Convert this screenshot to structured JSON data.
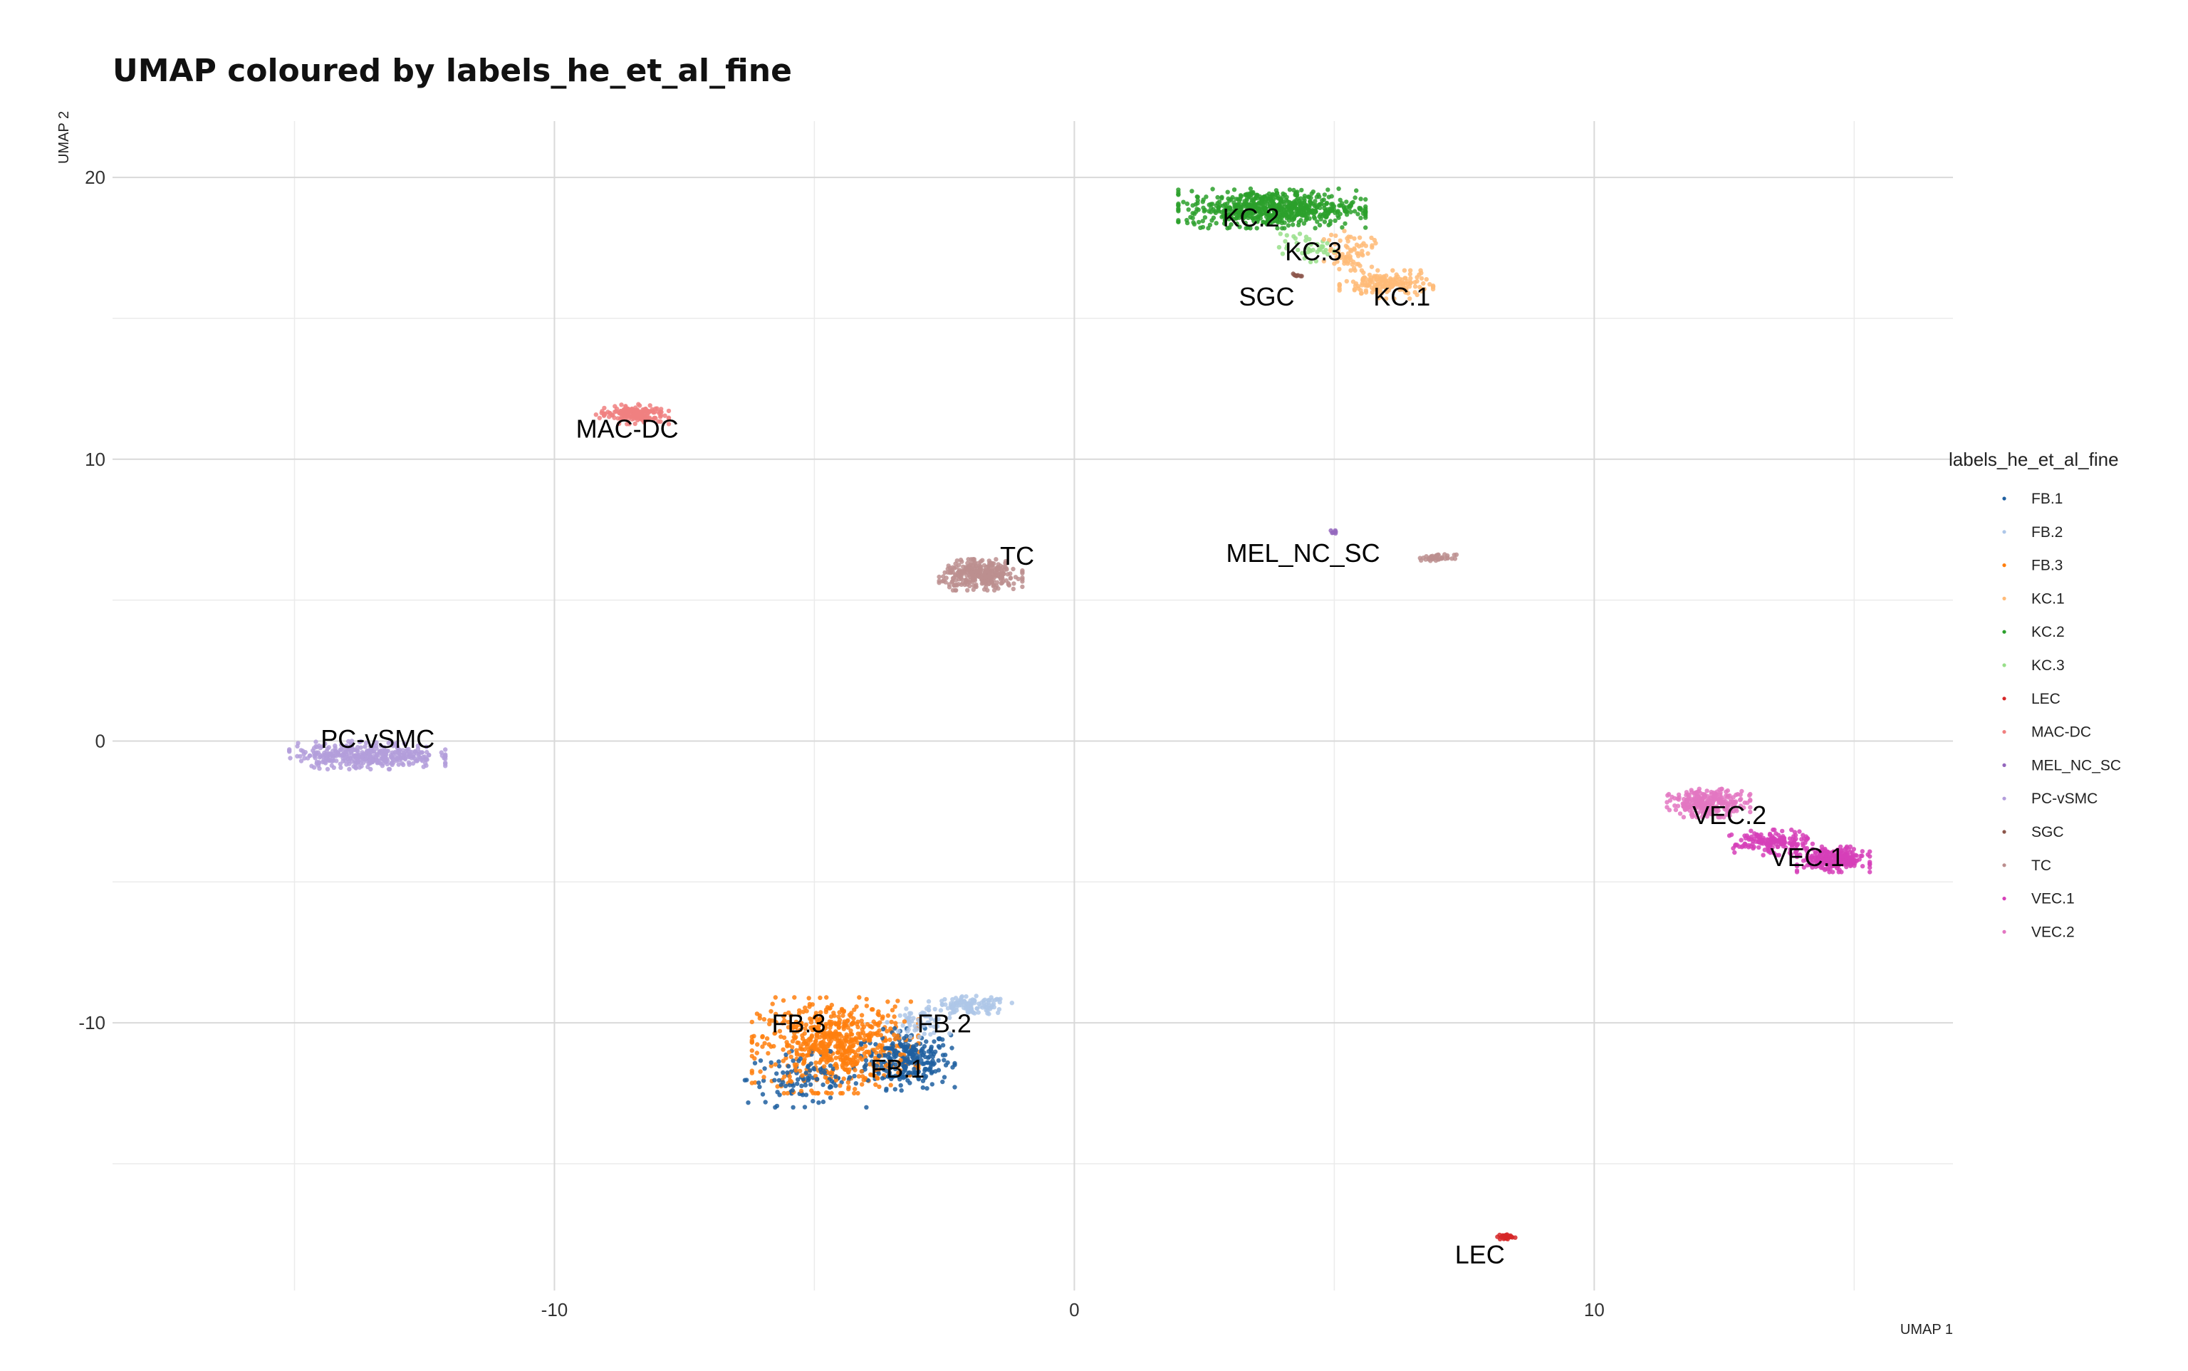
{
  "chart_data": {
    "type": "scatter",
    "title": "UMAP coloured by labels_he_et_al_fine",
    "xlabel": "UMAP 1",
    "ylabel": "UMAP 2",
    "xlim": [
      -18.5,
      16.9
    ],
    "ylim": [
      -19.5,
      22.0
    ],
    "x_ticks": [
      -10,
      0,
      10
    ],
    "x_tick_labels": [
      "-10",
      "0",
      "10"
    ],
    "y_ticks": [
      -10,
      0,
      10,
      20
    ],
    "y_tick_labels": [
      "-10",
      "0",
      "10",
      "20"
    ],
    "x_minor_ticks": [
      -15,
      -5,
      5,
      15
    ],
    "y_minor_ticks": [
      -15,
      -5,
      5,
      15
    ],
    "grid": true,
    "legend": {
      "title": "labels_he_et_al_fine",
      "placement": "right",
      "entries": [
        "FB.1",
        "FB.2",
        "FB.3",
        "KC.1",
        "KC.2",
        "KC.3",
        "LEC",
        "MAC-DC",
        "MEL_NC_SC",
        "PC-vSMC",
        "SGC",
        "TC",
        "VEC.1",
        "VEC.2"
      ]
    },
    "series": [
      {
        "name": "FB.1",
        "color": "#1f5fa0",
        "clusters": [
          {
            "cx": -3.2,
            "cy": -11.3,
            "rx": 0.9,
            "ry": 1.1,
            "n": 260
          },
          {
            "cx": -5.2,
            "cy": -12.0,
            "rx": 1.2,
            "ry": 1.0,
            "n": 110
          }
        ]
      },
      {
        "name": "FB.2",
        "color": "#aec7e8",
        "clusters": [
          {
            "cx": -2.0,
            "cy": -9.4,
            "rx": 0.8,
            "ry": 0.35,
            "n": 120
          },
          {
            "cx": -3.0,
            "cy": -10.0,
            "rx": 0.6,
            "ry": 0.5,
            "n": 60
          }
        ]
      },
      {
        "name": "FB.3",
        "color": "#ff7f0e",
        "clusters": [
          {
            "cx": -4.6,
            "cy": -10.8,
            "rx": 1.6,
            "ry": 1.7,
            "n": 650
          }
        ]
      },
      {
        "name": "KC.1",
        "color": "#ffbb78",
        "clusters": [
          {
            "cx": 6.0,
            "cy": 16.2,
            "rx": 0.9,
            "ry": 0.5,
            "n": 180
          },
          {
            "cx": 5.3,
            "cy": 17.4,
            "rx": 0.5,
            "ry": 0.7,
            "n": 70
          }
        ]
      },
      {
        "name": "KC.2",
        "color": "#2ca02c",
        "clusters": [
          {
            "cx": 3.8,
            "cy": 18.9,
            "rx": 1.8,
            "ry": 0.7,
            "n": 650
          }
        ]
      },
      {
        "name": "KC.3",
        "color": "#98df8a",
        "clusters": [
          {
            "cx": 4.5,
            "cy": 17.5,
            "rx": 0.6,
            "ry": 0.5,
            "n": 40
          }
        ]
      },
      {
        "name": "LEC",
        "color": "#d62728",
        "clusters": [
          {
            "cx": 8.3,
            "cy": -17.6,
            "rx": 0.18,
            "ry": 0.12,
            "n": 30
          }
        ]
      },
      {
        "name": "MAC-DC",
        "color": "#f08080",
        "clusters": [
          {
            "cx": -8.5,
            "cy": 11.6,
            "rx": 0.7,
            "ry": 0.35,
            "n": 160
          }
        ]
      },
      {
        "name": "MEL_NC_SC",
        "color": "#9467bd",
        "clusters": [
          {
            "cx": 5.0,
            "cy": 7.4,
            "rx": 0.07,
            "ry": 0.07,
            "n": 6
          }
        ]
      },
      {
        "name": "PC-vSMC",
        "color": "#b39ddb",
        "clusters": [
          {
            "cx": -13.6,
            "cy": -0.5,
            "rx": 1.5,
            "ry": 0.5,
            "n": 380
          }
        ]
      },
      {
        "name": "SGC",
        "color": "#8c564b",
        "clusters": [
          {
            "cx": 4.3,
            "cy": 16.5,
            "rx": 0.1,
            "ry": 0.08,
            "n": 8
          }
        ]
      },
      {
        "name": "TC",
        "color": "#bc8f8f",
        "clusters": [
          {
            "cx": -1.8,
            "cy": 5.9,
            "rx": 0.8,
            "ry": 0.55,
            "n": 330
          },
          {
            "cx": 7.0,
            "cy": 6.5,
            "rx": 0.35,
            "ry": 0.12,
            "n": 45
          }
        ]
      },
      {
        "name": "VEC.1",
        "color": "#d63fb8",
        "clusters": [
          {
            "cx": 14.6,
            "cy": -4.2,
            "rx": 0.7,
            "ry": 0.45,
            "n": 260
          },
          {
            "cx": 13.4,
            "cy": -3.6,
            "rx": 0.8,
            "ry": 0.45,
            "n": 160
          }
        ]
      },
      {
        "name": "VEC.2",
        "color": "#e377c2",
        "clusters": [
          {
            "cx": 12.2,
            "cy": -2.2,
            "rx": 0.8,
            "ry": 0.5,
            "n": 260
          }
        ]
      }
    ],
    "annotations": [
      {
        "text": "KC.2",
        "x": 3.4,
        "y": 18.5
      },
      {
        "text": "KC.3",
        "x": 4.6,
        "y": 17.3
      },
      {
        "text": "SGC",
        "x": 3.7,
        "y": 15.7
      },
      {
        "text": "KC.1",
        "x": 6.3,
        "y": 15.7
      },
      {
        "text": "MAC-DC",
        "x": -8.6,
        "y": 11.0
      },
      {
        "text": "TC",
        "x": -1.1,
        "y": 6.5
      },
      {
        "text": "MEL_NC_SC",
        "x": 4.4,
        "y": 6.6
      },
      {
        "text": "PC-vSMC",
        "x": -13.4,
        "y": 0.0
      },
      {
        "text": "VEC.2",
        "x": 12.6,
        "y": -2.7
      },
      {
        "text": "VEC.1",
        "x": 14.1,
        "y": -4.2
      },
      {
        "text": "FB.3",
        "x": -5.3,
        "y": -10.1
      },
      {
        "text": "FB.2",
        "x": -2.5,
        "y": -10.1
      },
      {
        "text": "FB.1",
        "x": -3.4,
        "y": -11.7
      },
      {
        "text": "LEC",
        "x": 7.8,
        "y": -18.3
      }
    ]
  }
}
